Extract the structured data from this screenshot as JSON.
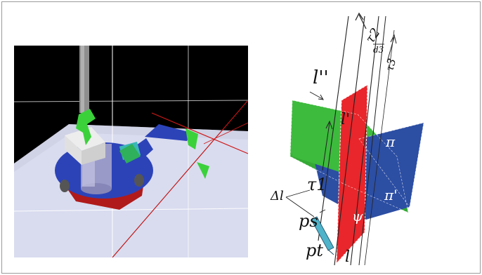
{
  "figure": {
    "render_alt": "robot-arm-3d-render",
    "labels": {
      "l_double_prime": "l''",
      "l_prime": "l'",
      "l": "l",
      "tau_1": "τ1",
      "tau_2": "τ2",
      "tau_3": "τ3",
      "d_3": "d3",
      "pi": "π",
      "pi_prime": "π'",
      "psi": "ψ",
      "delta_l": "Δl",
      "p_s": "ps",
      "p_t": "pt"
    },
    "colors": {
      "plane_green": "#3dbb3d",
      "plane_red": "#e8262b",
      "plane_blue": "#2c4ea3",
      "tool_cyan": "#4fb3c9",
      "floor": "#d9dcef",
      "robot_base": "#2c43b8",
      "robot_body": "#b01a1a"
    }
  }
}
